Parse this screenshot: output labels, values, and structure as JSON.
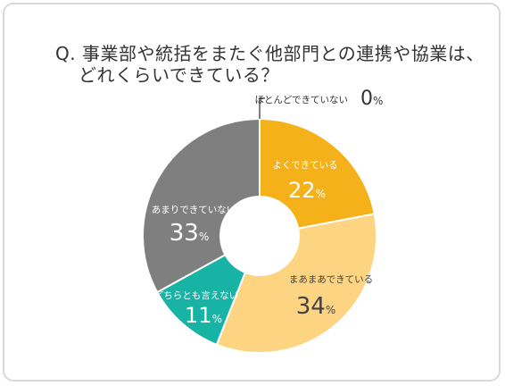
{
  "question": {
    "line1": "Q. 事業部や統括をまたぐ他部門との連携や協業は、",
    "line2": "どれくらいできている？"
  },
  "chart_data": {
    "type": "pie",
    "variant": "donut",
    "start": "top, clockwise",
    "percent_symbol": "%",
    "slices": [
      {
        "label": "よくできている",
        "value": 22,
        "color": "#F5B119",
        "text_color": "#ffffff"
      },
      {
        "label": "まあまあできている",
        "value": 34,
        "color": "#FDD482",
        "text_color": "#444444"
      },
      {
        "label": "どちらとも言えない",
        "value": 11,
        "color": "#17B3A5",
        "text_color": "#ffffff"
      },
      {
        "label": "あまりできていない",
        "value": 33,
        "color": "#7F7F7F",
        "text_color": "#ffffff"
      },
      {
        "label": "ほとんどできていない",
        "value": 0,
        "color": "#555555",
        "text_color": "#333333"
      }
    ]
  }
}
